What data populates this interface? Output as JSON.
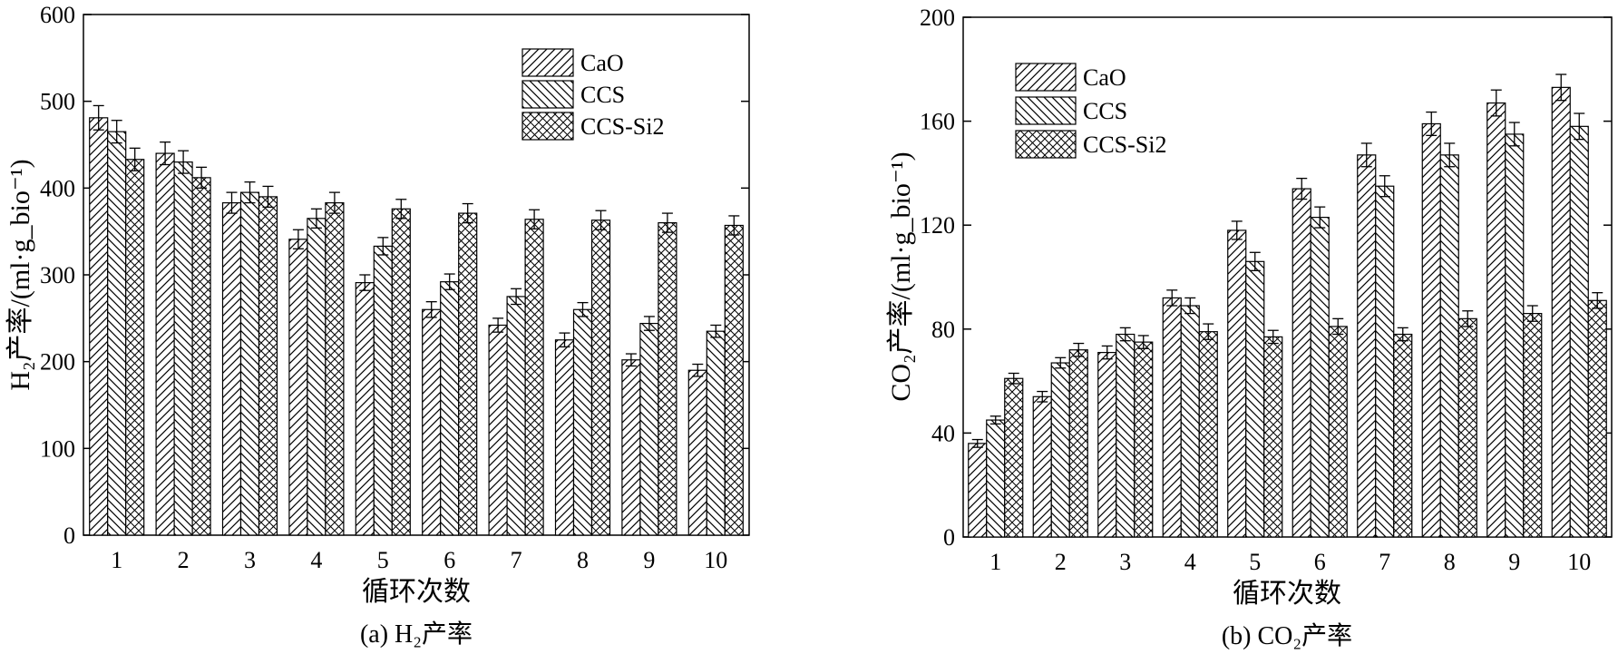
{
  "chart_data": [
    {
      "id": "a",
      "type": "bar",
      "caption": "(a) H₂产率",
      "xlabel": "循环次数",
      "ylabel": "H₂产率/(ml·g_bio⁻¹)",
      "ylim": [
        0,
        600
      ],
      "yticks": [
        0,
        100,
        200,
        300,
        400,
        500,
        600
      ],
      "categories": [
        "1",
        "2",
        "3",
        "4",
        "5",
        "6",
        "7",
        "8",
        "9",
        "10"
      ],
      "series": [
        {
          "name": "CaO",
          "pattern": "diag-right",
          "values": [
            481,
            440,
            383,
            341,
            291,
            260,
            242,
            225,
            202,
            190
          ],
          "errors": [
            14,
            13,
            12,
            11,
            9,
            9,
            8,
            8,
            7,
            7
          ]
        },
        {
          "name": "CCS",
          "pattern": "diag-left",
          "values": [
            465,
            430,
            395,
            365,
            333,
            292,
            275,
            260,
            244,
            235
          ],
          "errors": [
            13,
            13,
            12,
            11,
            10,
            9,
            9,
            8,
            8,
            7
          ]
        },
        {
          "name": "CCS-Si2",
          "pattern": "cross",
          "values": [
            433,
            412,
            390,
            383,
            376,
            371,
            364,
            363,
            360,
            357
          ],
          "errors": [
            13,
            12,
            12,
            12,
            11,
            11,
            11,
            11,
            11,
            11
          ]
        }
      ],
      "legend_position": "top-right",
      "grid": false
    },
    {
      "id": "b",
      "type": "bar",
      "caption": "(b) CO₂产率",
      "xlabel": "循环次数",
      "ylabel": "CO₂产率/(ml·g_bio⁻¹)",
      "ylim": [
        0,
        200
      ],
      "yticks": [
        0,
        40,
        80,
        120,
        160,
        200
      ],
      "categories": [
        "1",
        "2",
        "3",
        "4",
        "5",
        "6",
        "7",
        "8",
        "9",
        "10"
      ],
      "series": [
        {
          "name": "CaO",
          "pattern": "diag-right",
          "values": [
            36,
            54,
            71,
            92,
            118,
            134,
            147,
            159,
            167,
            173
          ],
          "errors": [
            1.5,
            2,
            2.5,
            3,
            3.5,
            4,
            4.5,
            4.5,
            5,
            5
          ]
        },
        {
          "name": "CCS",
          "pattern": "diag-left",
          "values": [
            45,
            67,
            78,
            89,
            106,
            123,
            135,
            147,
            155,
            158
          ],
          "errors": [
            1.5,
            2,
            2.5,
            3,
            3.5,
            4,
            4,
            4.5,
            4.5,
            5
          ]
        },
        {
          "name": "CCS-Si2",
          "pattern": "cross",
          "values": [
            61,
            72,
            75,
            79,
            77,
            81,
            78,
            84,
            86,
            91
          ],
          "errors": [
            2,
            2.5,
            2.5,
            3,
            2.5,
            3,
            2.5,
            3,
            3,
            3
          ]
        }
      ],
      "legend_position": "top-left",
      "grid": false
    }
  ]
}
